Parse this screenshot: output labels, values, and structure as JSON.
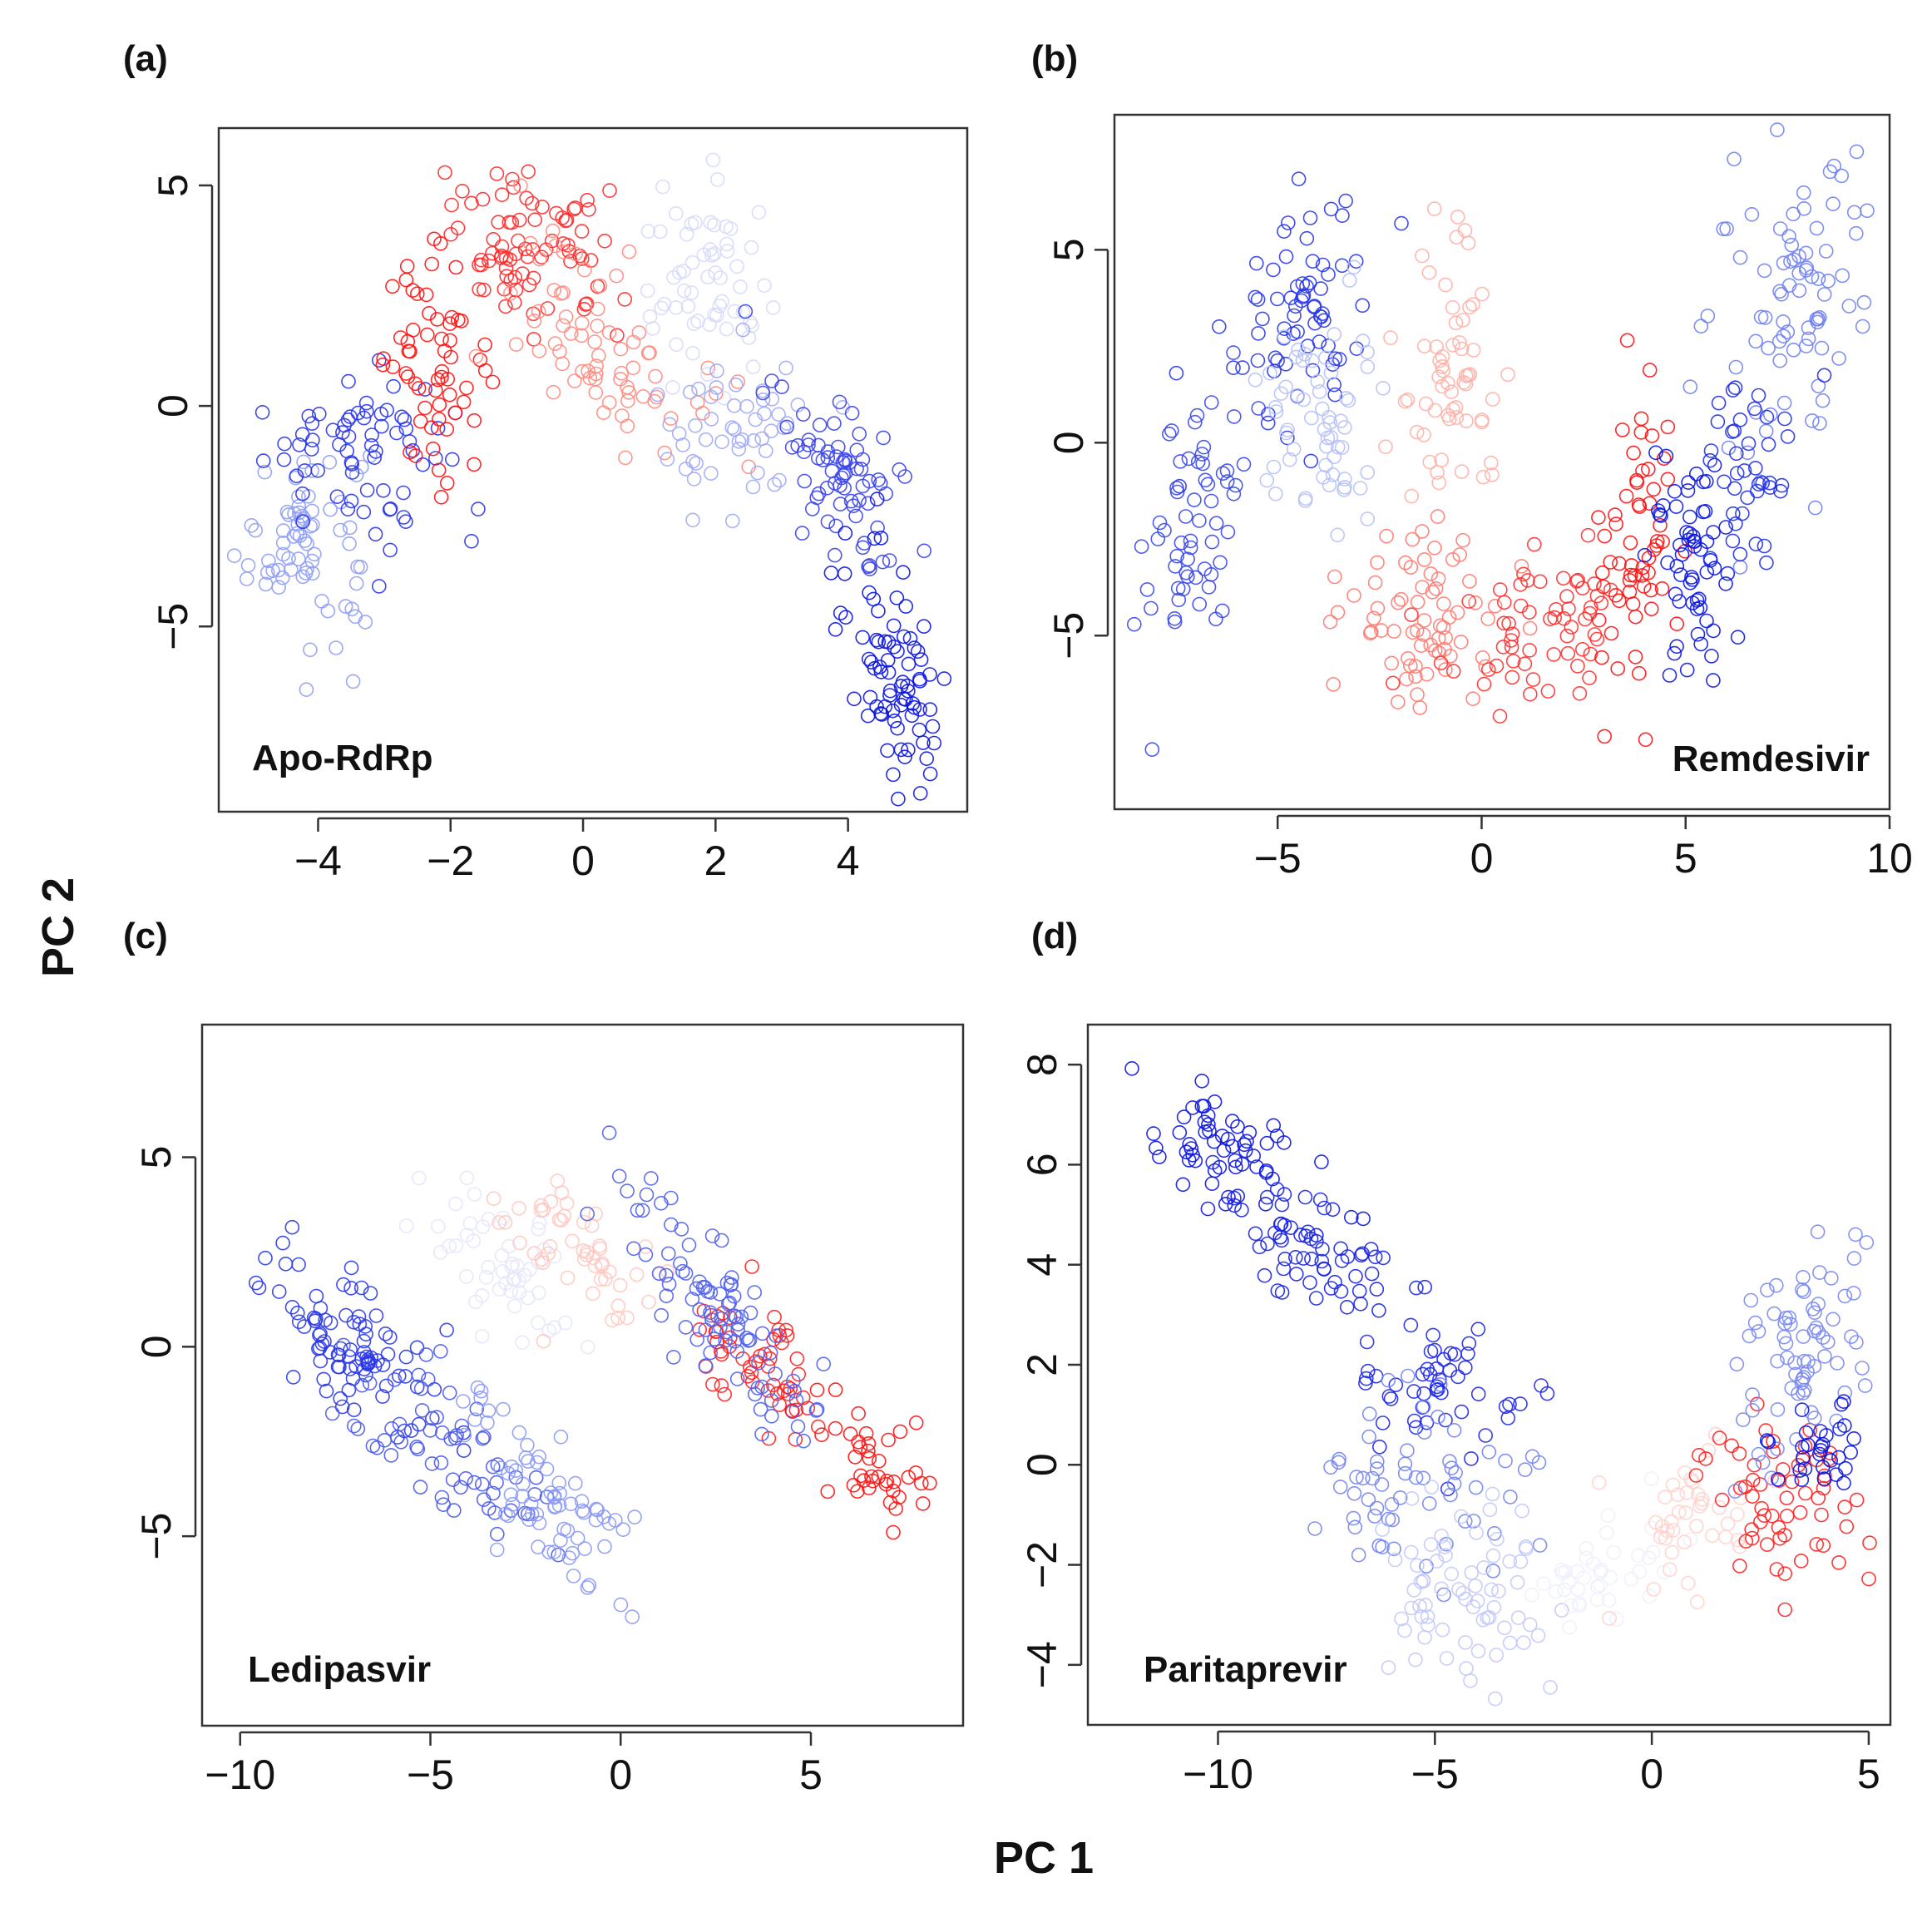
{
  "figure": {
    "shared_xlabel": "PC 1",
    "shared_ylabel": "PC 2",
    "color_scheme": [
      "#0000ff",
      "#ffffff",
      "#ff0000"
    ]
  },
  "chart_data": [
    {
      "id": "a",
      "panel_label": "(a)",
      "type": "scatter",
      "title": "Apo-RdRp",
      "xlabel": "PC 1",
      "ylabel": "PC 2",
      "xlim": [
        -5.5,
        5.8
      ],
      "ylim": [
        -9.2,
        6.3
      ],
      "xticks": [
        -4,
        -2,
        0,
        2,
        4
      ],
      "xtick_labels": [
        "−4",
        "−2",
        "0",
        "2",
        "4"
      ],
      "yticks": [
        -5,
        0,
        5
      ],
      "ytick_labels": [
        "−5",
        "0",
        "5"
      ],
      "clusters": [
        {
          "cx": -4.2,
          "cy": -3.0,
          "sx": 0.5,
          "sy": 1.2,
          "rho": 0.0,
          "n": 70,
          "color": "#8f9ef4"
        },
        {
          "cx": -3.4,
          "cy": -1.0,
          "sx": 0.7,
          "sy": 1.0,
          "rho": -0.2,
          "n": 70,
          "color": "#2a35e8"
        },
        {
          "cx": -2.2,
          "cy": 1.0,
          "sx": 0.4,
          "sy": 1.2,
          "rho": 0.0,
          "n": 60,
          "color": "#ff1010"
        },
        {
          "cx": -0.8,
          "cy": 3.5,
          "sx": 0.7,
          "sy": 0.9,
          "rho": -0.3,
          "n": 80,
          "color": "#ff2a2a"
        },
        {
          "cx": 0.4,
          "cy": 1.5,
          "sx": 0.7,
          "sy": 1.1,
          "rho": -0.3,
          "n": 70,
          "color": "#ff8b80"
        },
        {
          "cx": 1.8,
          "cy": 2.5,
          "sx": 0.5,
          "sy": 1.2,
          "rho": 0.0,
          "n": 60,
          "color": "#d6dafa"
        },
        {
          "cx": 2.3,
          "cy": -0.6,
          "sx": 0.6,
          "sy": 1.0,
          "rho": -0.2,
          "n": 50,
          "color": "#a0aaf5"
        },
        {
          "cx": 3.9,
          "cy": -1.5,
          "sx": 0.5,
          "sy": 1.3,
          "rho": -0.6,
          "n": 70,
          "color": "#3a44ea"
        },
        {
          "cx": 4.7,
          "cy": -5.8,
          "sx": 0.45,
          "sy": 1.3,
          "rho": -0.3,
          "n": 80,
          "color": "#0a14e0"
        }
      ]
    },
    {
      "id": "b",
      "panel_label": "(b)",
      "type": "scatter",
      "title": "Remdesivir",
      "xlabel": "PC 1",
      "ylabel": "PC 2",
      "xlim": [
        -9.0,
        10.0
      ],
      "ylim": [
        -9.5,
        8.5
      ],
      "xticks": [
        -5,
        0,
        5,
        10
      ],
      "xtick_labels": [
        "−5",
        "0",
        "5",
        "10"
      ],
      "yticks": [
        -5,
        0,
        5
      ],
      "ytick_labels": [
        "−5",
        "0",
        "5"
      ],
      "clusters": [
        {
          "cx": -7.0,
          "cy": -2.0,
          "sx": 0.6,
          "sy": 1.8,
          "rho": 0.2,
          "n": 60,
          "color": "#3a48ea"
        },
        {
          "cx": -4.5,
          "cy": 3.5,
          "sx": 0.9,
          "sy": 1.6,
          "rho": 0.2,
          "n": 70,
          "color": "#2a38e8"
        },
        {
          "cx": -4.0,
          "cy": 0.5,
          "sx": 0.7,
          "sy": 1.5,
          "rho": 0.0,
          "n": 60,
          "color": "#b6c0f7"
        },
        {
          "cx": -0.8,
          "cy": 2.0,
          "sx": 0.7,
          "sy": 2.0,
          "rho": 0.1,
          "n": 60,
          "color": "#ffb0a6"
        },
        {
          "cx": -1.5,
          "cy": -4.5,
          "sx": 1.0,
          "sy": 1.3,
          "rho": 0.0,
          "n": 70,
          "color": "#ff7a70"
        },
        {
          "cx": 1.5,
          "cy": -4.8,
          "sx": 1.2,
          "sy": 0.9,
          "rho": 0.2,
          "n": 60,
          "color": "#ff3030"
        },
        {
          "cx": 3.8,
          "cy": -2.5,
          "sx": 0.5,
          "sy": 1.8,
          "rho": 0.3,
          "n": 60,
          "color": "#ff1010"
        },
        {
          "cx": 5.0,
          "cy": -3.0,
          "sx": 0.5,
          "sy": 1.5,
          "rho": 0.0,
          "n": 60,
          "color": "#0a16e2"
        },
        {
          "cx": 7.5,
          "cy": 3.5,
          "sx": 1.0,
          "sy": 2.0,
          "rho": 0.3,
          "n": 80,
          "color": "#7082f0"
        },
        {
          "cx": 6.5,
          "cy": -1.0,
          "sx": 0.7,
          "sy": 1.3,
          "rho": 0.0,
          "n": 40,
          "color": "#2030e6"
        }
      ]
    },
    {
      "id": "c",
      "panel_label": "(c)",
      "type": "scatter",
      "title": "Ledipasvir",
      "xlabel": "PC 1",
      "ylabel": "PC 2",
      "xlim": [
        -11.0,
        9.0
      ],
      "ylim": [
        -10.0,
        8.5
      ],
      "xticks": [
        -10,
        -5,
        0,
        5
      ],
      "xtick_labels": [
        "−10",
        "−5",
        "0",
        "5"
      ],
      "yticks": [
        -5,
        0,
        5
      ],
      "ytick_labels": [
        "−5",
        "0",
        "5"
      ],
      "clusters": [
        {
          "cx": -7.0,
          "cy": 0.0,
          "sx": 1.3,
          "sy": 1.5,
          "rho": -0.75,
          "n": 90,
          "color": "#2a38e8"
        },
        {
          "cx": -4.5,
          "cy": -3.0,
          "sx": 1.3,
          "sy": 1.3,
          "rho": -0.6,
          "n": 60,
          "color": "#4a5aec"
        },
        {
          "cx": -2.0,
          "cy": -4.0,
          "sx": 1.2,
          "sy": 1.2,
          "rho": -0.6,
          "n": 70,
          "color": "#8c9af2"
        },
        {
          "cx": -3.0,
          "cy": 2.0,
          "sx": 1.0,
          "sy": 1.2,
          "rho": -0.6,
          "n": 50,
          "color": "#e4e7fb"
        },
        {
          "cx": -1.0,
          "cy": 2.5,
          "sx": 1.0,
          "sy": 1.0,
          "rho": -0.5,
          "n": 50,
          "color": "#ffc8c0"
        },
        {
          "cx": 3.5,
          "cy": -0.5,
          "sx": 1.0,
          "sy": 1.0,
          "rho": -0.6,
          "n": 50,
          "color": "#ff2020"
        },
        {
          "cx": 2.5,
          "cy": 1.0,
          "sx": 1.3,
          "sy": 1.6,
          "rho": -0.8,
          "n": 90,
          "color": "#5060ec"
        },
        {
          "cx": 6.5,
          "cy": -3.0,
          "sx": 0.7,
          "sy": 0.9,
          "rho": -0.5,
          "n": 40,
          "color": "#ff1010"
        }
      ]
    },
    {
      "id": "d",
      "panel_label": "(d)",
      "type": "scatter",
      "title": "Paritaprevir",
      "xlabel": "PC 1",
      "ylabel": "PC 2",
      "xlim": [
        -13.0,
        5.5
      ],
      "ylim": [
        -5.2,
        8.8
      ],
      "xticks": [
        -10,
        -5,
        0,
        5
      ],
      "xtick_labels": [
        "−10",
        "−5",
        "0",
        "5"
      ],
      "yticks": [
        -4,
        -2,
        0,
        2,
        4,
        6,
        8
      ],
      "ytick_labels": [
        "−4",
        "−2",
        "0",
        "2",
        "4",
        "6",
        "8"
      ],
      "clusters": [
        {
          "cx": -10.0,
          "cy": 6.2,
          "sx": 1.2,
          "sy": 0.8,
          "rho": -0.6,
          "n": 60,
          "color": "#0a14e0"
        },
        {
          "cx": -7.8,
          "cy": 4.3,
          "sx": 1.0,
          "sy": 0.8,
          "rho": -0.6,
          "n": 60,
          "color": "#1a24e4"
        },
        {
          "cx": -4.8,
          "cy": 1.5,
          "sx": 0.9,
          "sy": 0.6,
          "rho": -0.2,
          "n": 50,
          "color": "#1e28e4"
        },
        {
          "cx": -5.5,
          "cy": -0.5,
          "sx": 1.2,
          "sy": 0.9,
          "rho": 0.0,
          "n": 60,
          "color": "#7484ef"
        },
        {
          "cx": -4.2,
          "cy": -2.5,
          "sx": 1.0,
          "sy": 1.0,
          "rho": 0.0,
          "n": 70,
          "color": "#c2c9f8"
        },
        {
          "cx": -1.2,
          "cy": -2.3,
          "sx": 0.9,
          "sy": 0.8,
          "rho": 0.3,
          "n": 40,
          "color": "#eef0fd"
        },
        {
          "cx": 1.0,
          "cy": -1.2,
          "sx": 0.9,
          "sy": 0.8,
          "rho": 0.2,
          "n": 40,
          "color": "#ffd2cc"
        },
        {
          "cx": 3.2,
          "cy": -0.8,
          "sx": 0.9,
          "sy": 0.8,
          "rho": -0.2,
          "n": 60,
          "color": "#ff2020"
        },
        {
          "cx": 3.3,
          "cy": 2.2,
          "sx": 0.7,
          "sy": 1.1,
          "rho": 0.4,
          "n": 70,
          "color": "#7a8aef"
        },
        {
          "cx": 3.8,
          "cy": 0.3,
          "sx": 0.5,
          "sy": 0.5,
          "rho": 0.0,
          "n": 30,
          "color": "#0a14e0"
        }
      ]
    }
  ]
}
